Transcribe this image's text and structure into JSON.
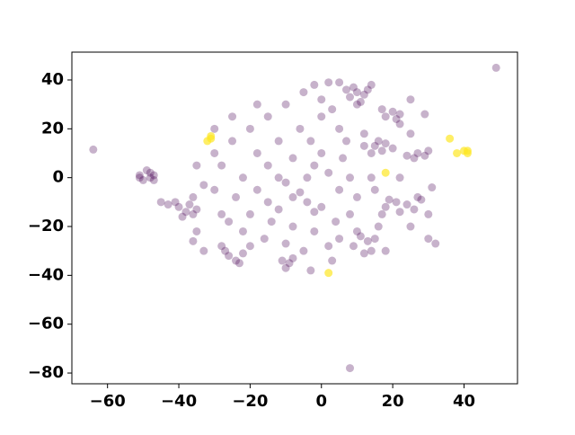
{
  "chart_data": {
    "type": "scatter",
    "xlim": [
      -70,
      55
    ],
    "ylim": [
      -84.4,
      51.4
    ],
    "xticks": [
      {
        "value": -60,
        "label": "−60"
      },
      {
        "value": -40,
        "label": "−40"
      },
      {
        "value": -20,
        "label": "−20"
      },
      0,
      20,
      40
    ],
    "yticks": [
      {
        "value": -80,
        "label": "−80"
      },
      {
        "value": -60,
        "label": "−60"
      },
      {
        "value": -40,
        "label": "−40"
      },
      {
        "value": -20,
        "label": "−20"
      },
      0,
      20,
      40
    ],
    "grid": false,
    "series": [
      {
        "color": "#440154",
        "opacity": 0.3,
        "x": [
          -64,
          49,
          8,
          -51,
          -50,
          -48,
          -47,
          -49,
          -47,
          -51,
          -48,
          -40,
          -38,
          -37,
          -36,
          -41,
          -35,
          -39,
          -43,
          -36,
          8,
          10,
          12,
          9,
          11,
          7,
          13,
          10,
          5,
          14,
          2,
          18,
          20,
          21,
          17,
          22,
          29,
          25,
          15,
          17,
          18,
          14,
          20,
          16,
          12,
          27,
          29,
          30,
          26,
          24,
          18,
          21,
          22,
          19,
          24,
          17,
          26,
          28,
          25,
          31,
          30,
          11,
          13,
          10,
          15,
          14,
          9,
          16,
          12,
          -26,
          -24,
          -22,
          -27,
          -23,
          -28,
          -9,
          -10,
          -8,
          -11,
          -20,
          -15,
          -10,
          -5,
          0,
          -25,
          -18,
          -12,
          -6,
          0,
          5,
          -28,
          -22,
          -15,
          -8,
          0,
          6,
          -30,
          -24,
          -18,
          -10,
          -4,
          2,
          8,
          -6,
          -8,
          -4,
          0,
          -2,
          5,
          10,
          -20,
          -14,
          -8,
          -2,
          4,
          -16,
          -10,
          2,
          -20,
          -30,
          -33,
          -36,
          -45,
          -5,
          3,
          -12,
          -15,
          7,
          3,
          -3,
          5,
          -25,
          -18,
          -30,
          12,
          25,
          32,
          30,
          27,
          -35,
          -28,
          -22,
          -35,
          -2,
          8,
          14,
          15,
          22,
          -12,
          -26,
          -33,
          -3,
          18,
          22,
          -2
        ],
        "values": [
          11.5,
          45,
          -78,
          0,
          -1,
          2,
          1,
          3,
          -1,
          1,
          0,
          -12,
          -14,
          -11,
          -15,
          -10,
          -13,
          -16,
          -11,
          -26,
          33,
          35,
          34,
          37,
          31,
          36,
          36,
          30,
          39,
          38,
          39,
          25,
          27,
          24,
          28,
          26,
          26,
          32,
          13,
          11,
          14,
          10,
          12,
          15,
          13,
          10,
          9,
          11,
          8,
          9,
          -12,
          -10,
          -14,
          -9,
          -11,
          -15,
          -13,
          -9,
          -20,
          -4,
          -15,
          -24,
          -26,
          -22,
          -25,
          -30,
          -28,
          -20,
          -31,
          -32,
          -34,
          -31,
          -30,
          -35,
          -28,
          -35,
          -37,
          -33,
          -34,
          20,
          25,
          30,
          35,
          32,
          15,
          10,
          15,
          20,
          25,
          20,
          5,
          0,
          5,
          8,
          10,
          8,
          -5,
          -8,
          -5,
          -2,
          0,
          2,
          0,
          -6,
          -8,
          -10,
          -12,
          -14,
          -5,
          -8,
          -15,
          -18,
          -20,
          -22,
          -18,
          -25,
          -27,
          -28,
          -28,
          10,
          -3,
          -8,
          -10,
          -30,
          -34,
          0,
          -10,
          15,
          28,
          15,
          -25,
          25,
          30,
          20,
          18,
          18,
          -27,
          -25,
          -8,
          -22,
          -15,
          -22,
          5,
          5,
          -15,
          0,
          -5,
          0,
          -13,
          -18,
          -30,
          -38,
          -30,
          22,
          38
        ]
      },
      {
        "color": "#fde725",
        "opacity": 0.7,
        "x": [
          -31,
          -32,
          -31,
          36,
          40,
          41,
          41,
          38,
          18,
          2
        ],
        "values": [
          16,
          15,
          17,
          16,
          11,
          10,
          11,
          10,
          2,
          -39
        ]
      }
    ]
  }
}
